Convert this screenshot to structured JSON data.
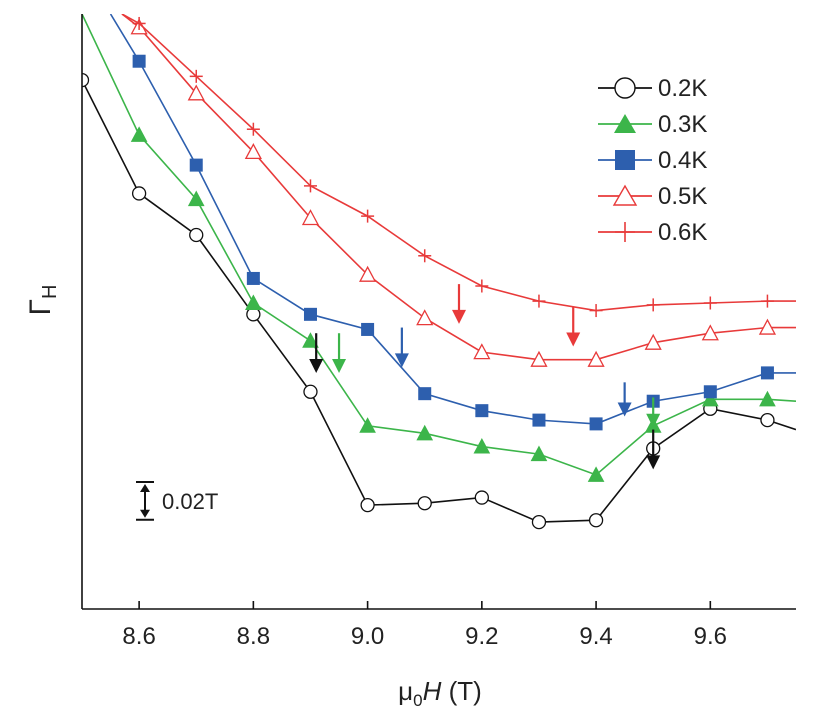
{
  "chart_data": {
    "type": "line",
    "title": "",
    "xlabel": {
      "prefix": "μ",
      "sub": "0",
      "italic": "H",
      "unit": " (T)"
    },
    "ylabel": {
      "main": "Γ",
      "sub": "H"
    },
    "xlim": [
      8.5,
      9.75
    ],
    "ylim": [
      -0.15,
      0.165
    ],
    "x_ticks": [
      "8.6",
      "8.8",
      "9.0",
      "9.2",
      "9.4",
      "9.6"
    ],
    "x_tick_values": [
      8.6,
      8.8,
      9.0,
      9.2,
      9.4,
      9.6
    ],
    "y_ticks_visible": false,
    "grid": false,
    "legend_position": "top-right",
    "scale_bar": {
      "label": "0.02T",
      "value": 0.02
    },
    "series": [
      {
        "name": "0.2K",
        "color": "#111111",
        "marker": "circle-open",
        "x": [
          8.5,
          8.6,
          8.7,
          8.8,
          8.9,
          9.0,
          9.1,
          9.2,
          9.3,
          9.4,
          9.5,
          9.6,
          9.7,
          9.75
        ],
        "y": [
          0.13,
          0.07,
          0.048,
          0.006,
          -0.035,
          -0.095,
          -0.094,
          -0.091,
          -0.104,
          -0.103,
          -0.065,
          -0.044,
          -0.05,
          -0.055
        ]
      },
      {
        "name": "0.3K",
        "color": "#3cb54a",
        "marker": "triangle-filled",
        "x": [
          8.5,
          8.6,
          8.7,
          8.8,
          8.9,
          9.0,
          9.1,
          9.2,
          9.3,
          9.4,
          9.5,
          9.6,
          9.7,
          9.75
        ],
        "y": [
          0.165,
          0.101,
          0.067,
          0.012,
          -0.008,
          -0.053,
          -0.057,
          -0.064,
          -0.068,
          -0.079,
          -0.053,
          -0.039,
          -0.039,
          -0.04
        ]
      },
      {
        "name": "0.4K",
        "color": "#2d5fae",
        "marker": "square-filled",
        "x": [
          8.55,
          8.6,
          8.7,
          8.8,
          8.9,
          9.0,
          9.1,
          9.2,
          9.3,
          9.4,
          9.5,
          9.6,
          9.7,
          9.75
        ],
        "y": [
          0.165,
          0.14,
          0.085,
          0.025,
          0.006,
          -0.002,
          -0.036,
          -0.045,
          -0.05,
          -0.052,
          -0.04,
          -0.035,
          -0.025,
          -0.025
        ]
      },
      {
        "name": "0.5K",
        "color": "#e83a3a",
        "marker": "triangle-open",
        "x": [
          8.57,
          8.6,
          8.7,
          8.8,
          8.9,
          9.0,
          9.1,
          9.2,
          9.3,
          9.4,
          9.5,
          9.6,
          9.7,
          9.75
        ],
        "y": [
          0.165,
          0.158,
          0.123,
          0.092,
          0.057,
          0.027,
          0.004,
          -0.014,
          -0.018,
          -0.018,
          -0.009,
          -0.004,
          -0.001,
          -0.001
        ]
      },
      {
        "name": "0.6K",
        "color": "#e83a3a",
        "marker": "plus",
        "x": [
          8.57,
          8.6,
          8.7,
          8.8,
          8.9,
          9.0,
          9.1,
          9.2,
          9.3,
          9.4,
          9.5,
          9.6,
          9.7,
          9.75
        ],
        "y": [
          0.165,
          0.16,
          0.132,
          0.104,
          0.074,
          0.058,
          0.037,
          0.021,
          0.013,
          0.008,
          0.011,
          0.012,
          0.013,
          0.013
        ]
      }
    ],
    "arrows": [
      {
        "color": "#111111",
        "x": 8.91,
        "y_top": -0.004,
        "y_bottom": -0.024
      },
      {
        "color": "#3cb54a",
        "x": 8.95,
        "y_top": -0.004,
        "y_bottom": -0.024
      },
      {
        "color": "#2d5fae",
        "x": 9.06,
        "y_top": -0.001,
        "y_bottom": -0.021
      },
      {
        "color": "#e83a3a",
        "x": 9.16,
        "y_top": 0.022,
        "y_bottom": 0.002
      },
      {
        "color": "#e83a3a",
        "x": 9.36,
        "y_top": 0.01,
        "y_bottom": -0.01
      },
      {
        "color": "#2d5fae",
        "x": 9.45,
        "y_top": -0.03,
        "y_bottom": -0.047
      },
      {
        "color": "#3cb54a",
        "x": 9.5,
        "y_top": -0.038,
        "y_bottom": -0.053
      },
      {
        "color": "#111111",
        "x": 9.5,
        "y_top": -0.055,
        "y_bottom": -0.075
      }
    ]
  }
}
